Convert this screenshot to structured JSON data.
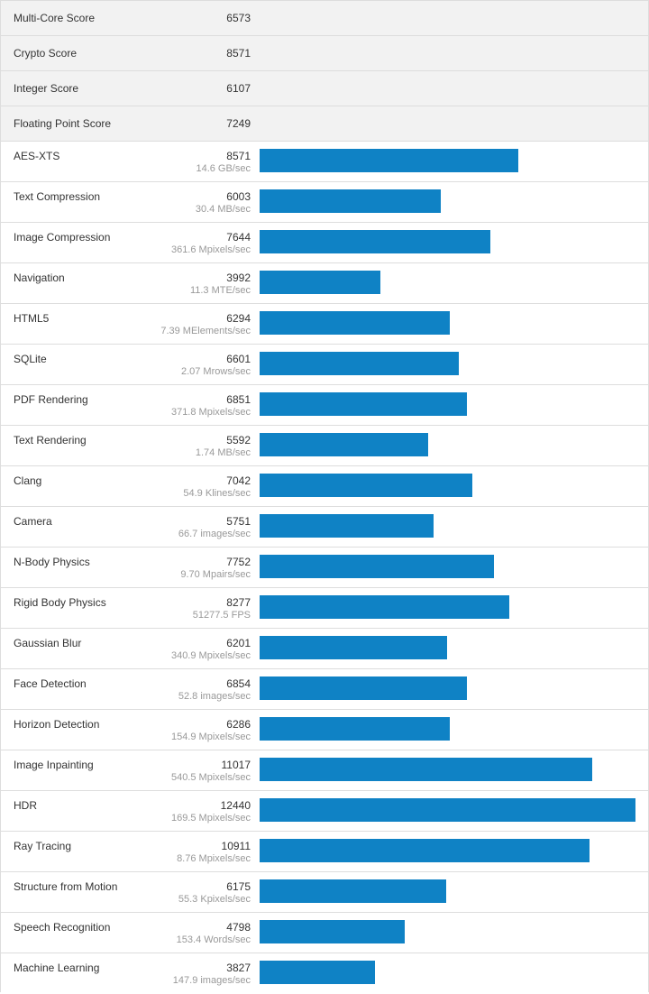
{
  "summary": [
    {
      "label": "Multi-Core Score",
      "score": "6573"
    },
    {
      "label": "Crypto Score",
      "score": "8571"
    },
    {
      "label": "Integer Score",
      "score": "6107"
    },
    {
      "label": "Floating Point Score",
      "score": "7249"
    }
  ],
  "bar_color": "#0f82c5",
  "bar_max_score": 12440,
  "benchmarks": [
    {
      "name": "AES-XTS",
      "score": "8571",
      "value": 8571,
      "rate": "14.6 GB/sec"
    },
    {
      "name": "Text Compression",
      "score": "6003",
      "value": 6003,
      "rate": "30.4 MB/sec"
    },
    {
      "name": "Image Compression",
      "score": "7644",
      "value": 7644,
      "rate": "361.6 Mpixels/sec"
    },
    {
      "name": "Navigation",
      "score": "3992",
      "value": 3992,
      "rate": "11.3 MTE/sec"
    },
    {
      "name": "HTML5",
      "score": "6294",
      "value": 6294,
      "rate": "7.39 MElements/sec"
    },
    {
      "name": "SQLite",
      "score": "6601",
      "value": 6601,
      "rate": "2.07 Mrows/sec"
    },
    {
      "name": "PDF Rendering",
      "score": "6851",
      "value": 6851,
      "rate": "371.8 Mpixels/sec"
    },
    {
      "name": "Text Rendering",
      "score": "5592",
      "value": 5592,
      "rate": "1.74 MB/sec"
    },
    {
      "name": "Clang",
      "score": "7042",
      "value": 7042,
      "rate": "54.9 Klines/sec"
    },
    {
      "name": "Camera",
      "score": "5751",
      "value": 5751,
      "rate": "66.7 images/sec"
    },
    {
      "name": "N-Body Physics",
      "score": "7752",
      "value": 7752,
      "rate": "9.70 Mpairs/sec"
    },
    {
      "name": "Rigid Body Physics",
      "score": "8277",
      "value": 8277,
      "rate": "51277.5 FPS"
    },
    {
      "name": "Gaussian Blur",
      "score": "6201",
      "value": 6201,
      "rate": "340.9 Mpixels/sec"
    },
    {
      "name": "Face Detection",
      "score": "6854",
      "value": 6854,
      "rate": "52.8 images/sec"
    },
    {
      "name": "Horizon Detection",
      "score": "6286",
      "value": 6286,
      "rate": "154.9 Mpixels/sec"
    },
    {
      "name": "Image Inpainting",
      "score": "11017",
      "value": 11017,
      "rate": "540.5 Mpixels/sec"
    },
    {
      "name": "HDR",
      "score": "12440",
      "value": 12440,
      "rate": "169.5 Mpixels/sec"
    },
    {
      "name": "Ray Tracing",
      "score": "10911",
      "value": 10911,
      "rate": "8.76 Mpixels/sec"
    },
    {
      "name": "Structure from Motion",
      "score": "6175",
      "value": 6175,
      "rate": "55.3 Kpixels/sec"
    },
    {
      "name": "Speech Recognition",
      "score": "4798",
      "value": 4798,
      "rate": "153.4 Words/sec"
    },
    {
      "name": "Machine Learning",
      "score": "3827",
      "value": 3827,
      "rate": "147.9 images/sec"
    }
  ]
}
